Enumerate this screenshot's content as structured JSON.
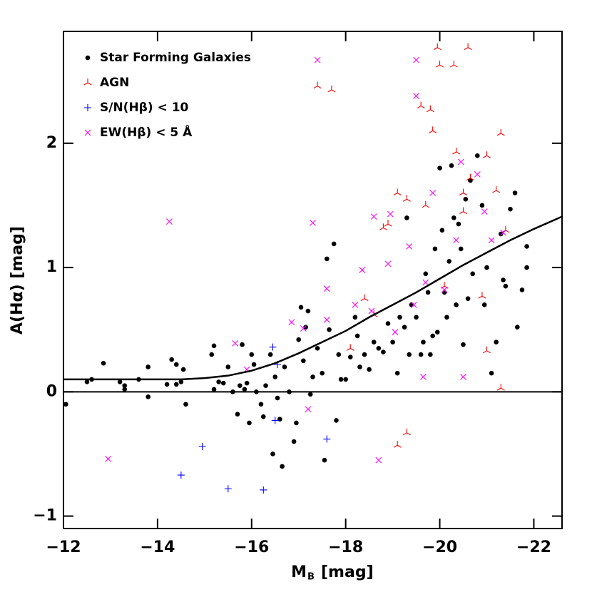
{
  "chart_data": {
    "type": "scatter",
    "x_label": {
      "main": "M",
      "sub": "B",
      "unit": "[mag]"
    },
    "y_label": "A(Hα) [mag]",
    "xlim": [
      -12,
      -22.6
    ],
    "ylim": [
      -1.1,
      2.9
    ],
    "xticks": [
      {
        "value": -12,
        "label": "−12"
      },
      {
        "value": -14,
        "label": "−14"
      },
      {
        "value": -16,
        "label": "−16"
      },
      {
        "value": -18,
        "label": "−18"
      },
      {
        "value": -20,
        "label": "−20"
      },
      {
        "value": -22,
        "label": "−22"
      }
    ],
    "yticks": [
      {
        "value": -1,
        "label": "−1"
      },
      0,
      1,
      2
    ],
    "reference_line": 0,
    "series": [
      {
        "name": "Star Forming Galaxies",
        "color": "#000000",
        "marker": "dot",
        "x": [
          -12.05,
          -12.5,
          -12.6,
          -12.85,
          -13.2,
          -13.3,
          -13.3,
          -13.6,
          -13.8,
          -13.8,
          -14.2,
          -14.3,
          -14.4,
          -14.4,
          -14.55,
          -14.6,
          -14.5,
          -15.15,
          -15.2,
          -15.2,
          -15.3,
          -15.4,
          -15.5,
          -15.6,
          -15.7,
          -15.75,
          -15.8,
          -15.85,
          -15.9,
          -15.95,
          -16.0,
          -16.05,
          -16.1,
          -16.2,
          -16.25,
          -16.3,
          -16.4,
          -16.45,
          -16.5,
          -16.55,
          -16.6,
          -16.65,
          -16.7,
          -16.8,
          -16.9,
          -16.95,
          -17.0,
          -17.05,
          -17.1,
          -17.15,
          -17.2,
          -17.25,
          -17.3,
          -17.4,
          -17.5,
          -17.55,
          -17.6,
          -17.65,
          -17.75,
          -17.8,
          -17.85,
          -17.9,
          -18.0,
          -18.1,
          -18.2,
          -18.25,
          -18.3,
          -18.4,
          -18.5,
          -18.6,
          -18.7,
          -18.8,
          -18.9,
          -19.0,
          -19.1,
          -19.15,
          -19.25,
          -19.3,
          -19.35,
          -19.4,
          -19.5,
          -19.6,
          -19.65,
          -19.7,
          -19.75,
          -19.8,
          -19.85,
          -19.9,
          -19.95,
          -20.0,
          -20.05,
          -20.1,
          -20.15,
          -20.2,
          -20.25,
          -20.3,
          -20.35,
          -20.4,
          -20.45,
          -20.5,
          -20.55,
          -20.6,
          -20.65,
          -20.7,
          -20.8,
          -20.9,
          -20.95,
          -21.0,
          -21.1,
          -21.2,
          -21.3,
          -21.35,
          -21.4,
          -21.5,
          -21.6,
          -21.65,
          -21.75,
          -21.85,
          -21.85
        ],
        "values": [
          -0.1,
          0.08,
          0.1,
          0.23,
          0.08,
          0.02,
          0.05,
          0.1,
          0.2,
          -0.04,
          0.06,
          0.26,
          0.22,
          0.06,
          0.18,
          -0.1,
          0.08,
          0.3,
          0.37,
          0.02,
          0.08,
          0.07,
          0.2,
          0.0,
          -0.18,
          0.05,
          0.38,
          0.02,
          0.07,
          -0.25,
          0.3,
          0.22,
          0.0,
          -0.1,
          -0.2,
          0.05,
          0.3,
          -0.5,
          0.12,
          -0.05,
          -0.22,
          -0.6,
          0.2,
          0.0,
          -0.4,
          -0.25,
          0.42,
          0.68,
          0.25,
          0.52,
          0.65,
          -0.02,
          0.12,
          0.35,
          0.15,
          -0.55,
          1.07,
          0.5,
          1.19,
          -0.23,
          0.3,
          0.1,
          0.1,
          0.28,
          0.6,
          0.45,
          0.2,
          0.3,
          0.18,
          0.4,
          0.35,
          0.32,
          0.55,
          0.4,
          0.15,
          0.6,
          0.52,
          1.4,
          0.3,
          0.7,
          0.6,
          0.3,
          0.4,
          0.95,
          0.8,
          0.3,
          0.45,
          1.15,
          0.48,
          1.8,
          1.3,
          0.8,
          0.6,
          1.05,
          1.82,
          1.4,
          0.7,
          1.35,
          1.15,
          0.38,
          1.55,
          0.75,
          1.7,
          0.95,
          1.9,
          1.5,
          0.7,
          1.0,
          0.15,
          0.4,
          1.27,
          0.9,
          0.85,
          1.47,
          1.6,
          0.52,
          0.82,
          1.17,
          1.0
        ]
      },
      {
        "name": "AGN",
        "color": "#ff0000",
        "marker": "tri",
        "x": [
          -17.4,
          -17.7,
          -19.1,
          -19.3,
          -19.6,
          -19.7,
          -19.8,
          -19.85,
          -19.95,
          -20.0,
          -20.3,
          -20.35,
          -20.5,
          -20.6,
          -20.65,
          -21.0,
          -21.3,
          -21.2,
          -21.4,
          -21.3,
          -21.0,
          -19.1,
          -19.3,
          -18.8,
          -18.9,
          -18.4,
          -18.1,
          -20.9,
          -20.5,
          -20.1,
          -18.6
        ],
        "values": [
          2.46,
          2.43,
          1.6,
          1.55,
          2.3,
          1.5,
          2.27,
          2.1,
          2.77,
          2.63,
          2.63,
          1.93,
          1.6,
          2.77,
          1.72,
          1.9,
          2.08,
          1.62,
          1.3,
          0.03,
          0.33,
          -0.43,
          -0.33,
          1.32,
          1.35,
          0.75,
          0.35,
          0.77,
          1.45,
          0.85,
          0.62
        ]
      },
      {
        "name": "S/N(Hβ) < 10",
        "color": "#0000ff",
        "marker": "plus",
        "x": [
          -14.5,
          -14.95,
          -15.5,
          -16.25,
          -16.45,
          -16.55,
          -16.5,
          -17.6
        ],
        "values": [
          -0.67,
          -0.44,
          -0.78,
          -0.79,
          0.36,
          0.22,
          -0.23,
          -0.38
        ]
      },
      {
        "name": "EW(Hβ) < 5 Å",
        "color": "#ff00ff",
        "marker": "cross",
        "x": [
          -12.95,
          -14.25,
          -15.65,
          -15.9,
          -16.85,
          -17.1,
          -17.2,
          -17.3,
          -17.4,
          -17.6,
          -17.6,
          -18.2,
          -18.35,
          -18.6,
          -18.7,
          -18.9,
          -18.95,
          -19.05,
          -19.35,
          -19.5,
          -19.5,
          -19.65,
          -19.7,
          -19.85,
          -20.1,
          -20.35,
          -20.45,
          -20.5,
          -20.8,
          -20.95,
          -21.1,
          -21.35,
          -19.45,
          -18.55
        ],
        "values": [
          -0.54,
          1.37,
          0.39,
          0.18,
          0.56,
          0.51,
          -0.14,
          1.36,
          2.67,
          0.83,
          0.58,
          0.7,
          0.98,
          1.41,
          -0.55,
          1.03,
          1.43,
          0.48,
          1.17,
          2.67,
          2.38,
          0.12,
          0.88,
          1.6,
          0.82,
          1.22,
          1.85,
          0.12,
          1.75,
          1.45,
          1.22,
          1.28,
          0.7,
          0.65
        ]
      },
      {
        "color": "#000000",
        "marker": "line",
        "x": [
          -12,
          -14,
          -14.5,
          -15,
          -15.5,
          -16,
          -16.5,
          -17,
          -17.5,
          -18,
          -18.5,
          -19,
          -19.5,
          -20,
          -20.5,
          -21,
          -21.5,
          -22,
          -22.6
        ],
        "values": [
          0.1,
          0.1,
          0.1,
          0.11,
          0.13,
          0.17,
          0.23,
          0.31,
          0.4,
          0.49,
          0.6,
          0.7,
          0.8,
          0.91,
          1.02,
          1.12,
          1.22,
          1.31,
          1.41
        ]
      }
    ]
  }
}
